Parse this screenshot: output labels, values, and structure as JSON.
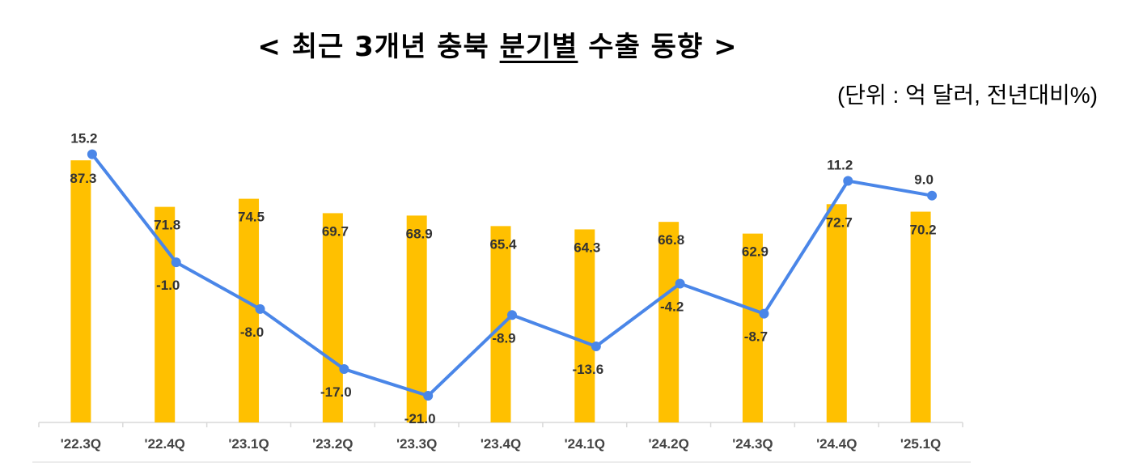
{
  "title": {
    "prefix": "< 최근 3개년 충북 ",
    "underlined": "분기별",
    "suffix": " 수출 동향 >"
  },
  "unit_note": "(단위 : 억 달러, 전년대비%)",
  "chart_data": {
    "type": "bar+line",
    "categories": [
      "'22.3Q",
      "'22.4Q",
      "'23.1Q",
      "'23.2Q",
      "'23.3Q",
      "'23.4Q",
      "'24.1Q",
      "'24.2Q",
      "'24.3Q",
      "'24.4Q",
      "'25.1Q"
    ],
    "series": [
      {
        "type": "bar",
        "axis": "primary",
        "values": [
          87.3,
          71.8,
          74.5,
          69.7,
          68.9,
          65.4,
          64.3,
          66.8,
          62.9,
          72.7,
          70.2
        ],
        "color": "#FFC000"
      },
      {
        "type": "line",
        "axis": "secondary",
        "values": [
          15.2,
          -1.0,
          -8.0,
          -17.0,
          -21.0,
          -8.9,
          -13.6,
          -4.2,
          -8.7,
          11.2,
          9.0
        ],
        "color": "#4A86E8"
      }
    ],
    "primary_ylim": [
      0,
      100
    ],
    "secondary_ylim": [
      -25,
      20
    ],
    "grid": false,
    "legend": "none",
    "data_labels": true
  }
}
